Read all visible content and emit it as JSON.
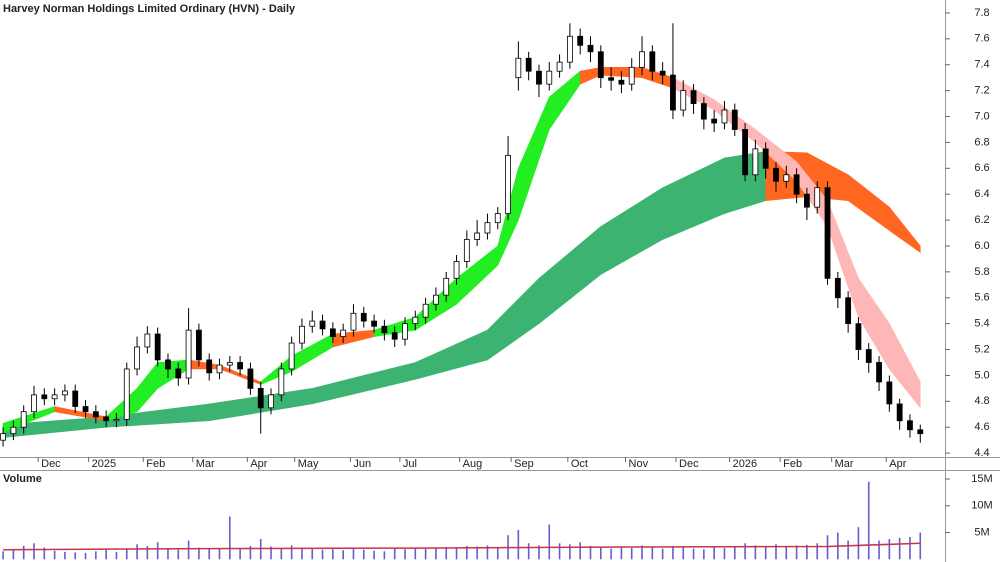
{
  "chart_data": [
    {
      "type": "candlestick",
      "title": "Harvey Norman Holdings Limited Ordinary (HVN) - Daily",
      "xlim": [
        -0.3,
        91.4
      ],
      "xticks": [
        {
          "value": 3.4,
          "label": "Dec"
        },
        {
          "value": 8.3,
          "label": "2025"
        },
        {
          "value": 13.6,
          "label": "Feb"
        },
        {
          "value": 18.4,
          "label": "Mar"
        },
        {
          "value": 23.7,
          "label": "Apr"
        },
        {
          "value": 28.3,
          "label": "May"
        },
        {
          "value": 33.7,
          "label": "Jun"
        },
        {
          "value": 38.5,
          "label": "Jul"
        },
        {
          "value": 44.3,
          "label": "Aug"
        },
        {
          "value": 49.3,
          "label": "Sep"
        },
        {
          "value": 54.8,
          "label": "Oct"
        },
        {
          "value": 60.4,
          "label": "Nov"
        },
        {
          "value": 65.3,
          "label": "Dec"
        },
        {
          "value": 70.5,
          "label": "2026"
        },
        {
          "value": 75.4,
          "label": "Feb"
        },
        {
          "value": 80.4,
          "label": "Mar"
        },
        {
          "value": 85.7,
          "label": "Apr"
        }
      ],
      "ylim": [
        4.37,
        7.9
      ],
      "yticks": [
        4.4,
        4.6,
        4.8,
        {
          "value": 5,
          "label": "5.0"
        },
        5.2,
        5.4,
        5.6,
        5.8,
        {
          "value": 6,
          "label": "6.0"
        },
        6.2,
        6.4,
        6.6,
        6.8,
        {
          "value": 7,
          "label": "7.0"
        },
        7.2,
        7.4,
        7.6,
        7.8
      ],
      "up_color": "#ffffff",
      "down_color": "#000000",
      "open": [
        4.5,
        4.55,
        4.6,
        4.72,
        4.85,
        4.82,
        4.85,
        4.88,
        4.76,
        4.72,
        4.68,
        4.65,
        4.66,
        5.05,
        5.22,
        5.32,
        5.12,
        5.05,
        4.98,
        5.35,
        5.12,
        5.02,
        5.08,
        5.1,
        5.05,
        4.9,
        4.75,
        4.85,
        5.05,
        5.25,
        5.38,
        5.42,
        5.36,
        5.3,
        5.35,
        5.48,
        5.42,
        5.38,
        5.33,
        5.28,
        5.4,
        5.45,
        5.55,
        5.62,
        5.75,
        5.88,
        6.05,
        6.1,
        6.18,
        6.25,
        7.3,
        7.45,
        7.35,
        7.25,
        7.35,
        7.42,
        7.62,
        7.55,
        7.5,
        7.3,
        7.28,
        7.25,
        7.38,
        7.5,
        7.35,
        7.32,
        7.05,
        7.2,
        7.1,
        6.98,
        6.95,
        7.05,
        6.9,
        6.55,
        6.75,
        6.6,
        6.5,
        6.55,
        6.4,
        6.3,
        6.45,
        5.75,
        5.6,
        5.4,
        5.2,
        5.1,
        4.95,
        4.78,
        4.65,
        4.58
      ],
      "high": [
        4.6,
        4.65,
        4.77,
        4.92,
        4.9,
        4.9,
        4.93,
        4.93,
        4.81,
        4.77,
        4.73,
        4.71,
        5.1,
        5.3,
        5.38,
        5.37,
        5.17,
        5.1,
        5.52,
        5.4,
        5.17,
        5.13,
        5.15,
        5.15,
        5.1,
        4.95,
        4.9,
        5.1,
        5.3,
        5.44,
        5.5,
        5.47,
        5.41,
        5.4,
        5.55,
        5.53,
        5.47,
        5.43,
        5.38,
        5.45,
        5.5,
        5.6,
        5.68,
        5.8,
        5.93,
        6.12,
        6.2,
        6.25,
        6.3,
        6.85,
        7.58,
        7.5,
        7.4,
        7.42,
        7.48,
        7.72,
        7.68,
        7.62,
        7.55,
        7.38,
        7.35,
        7.45,
        7.62,
        7.55,
        7.42,
        7.72,
        7.28,
        7.25,
        7.15,
        7.05,
        7.12,
        7.1,
        6.95,
        6.82,
        6.8,
        6.65,
        6.62,
        6.6,
        6.45,
        6.5,
        6.5,
        5.8,
        5.65,
        5.45,
        5.25,
        5.15,
        5.0,
        4.82,
        4.7,
        4.62
      ],
      "low": [
        4.45,
        4.5,
        4.55,
        4.67,
        4.77,
        4.77,
        4.8,
        4.71,
        4.67,
        4.63,
        4.6,
        4.6,
        4.61,
        5.0,
        5.17,
        5.07,
        4.98,
        4.92,
        4.93,
        5.07,
        4.96,
        4.97,
        5.03,
        5.0,
        4.85,
        4.55,
        4.7,
        4.8,
        5.0,
        5.2,
        5.33,
        5.31,
        5.25,
        5.25,
        5.3,
        5.37,
        5.33,
        5.27,
        5.22,
        5.23,
        5.35,
        5.4,
        5.5,
        5.57,
        5.7,
        5.83,
        6.0,
        6.05,
        6.13,
        6.2,
        7.2,
        7.28,
        7.15,
        7.2,
        7.3,
        7.37,
        7.48,
        7.42,
        7.22,
        7.2,
        7.18,
        7.2,
        7.32,
        7.28,
        7.25,
        6.98,
        7.0,
        7.02,
        6.9,
        6.88,
        6.9,
        6.85,
        6.5,
        6.5,
        6.52,
        6.42,
        6.45,
        6.33,
        6.2,
        6.25,
        5.7,
        5.52,
        5.33,
        5.12,
        5.02,
        4.88,
        4.72,
        4.58,
        4.52,
        4.48
      ],
      "close": [
        4.55,
        4.6,
        4.72,
        4.85,
        4.82,
        4.85,
        4.88,
        4.76,
        4.72,
        4.68,
        4.65,
        4.66,
        5.05,
        5.22,
        5.32,
        5.12,
        5.05,
        4.98,
        5.35,
        5.12,
        5.02,
        5.08,
        5.1,
        5.05,
        4.9,
        4.75,
        4.85,
        5.05,
        5.25,
        5.38,
        5.42,
        5.36,
        5.3,
        5.35,
        5.48,
        5.42,
        5.38,
        5.33,
        5.28,
        5.4,
        5.45,
        5.55,
        5.62,
        5.75,
        5.88,
        6.05,
        6.1,
        6.18,
        6.25,
        6.7,
        7.45,
        7.35,
        7.25,
        7.35,
        7.42,
        7.62,
        7.55,
        7.5,
        7.3,
        7.28,
        7.25,
        7.38,
        7.5,
        7.35,
        7.32,
        7.05,
        7.2,
        7.1,
        6.98,
        6.95,
        7.05,
        6.9,
        6.55,
        6.75,
        6.6,
        6.5,
        6.55,
        6.4,
        6.3,
        6.45,
        5.75,
        5.6,
        5.4,
        5.2,
        5.1,
        4.95,
        4.78,
        4.65,
        4.58,
        4.55
      ],
      "bands": [
        {
          "x": [
            0,
            10,
            20,
            30,
            40,
            47,
            52,
            58,
            64,
            70,
            74,
            78,
            82,
            86,
            89
          ],
          "upper": [
            4.62,
            4.68,
            4.78,
            4.9,
            5.1,
            5.35,
            5.75,
            6.15,
            6.45,
            6.68,
            6.73,
            6.72,
            6.55,
            6.3,
            6.0
          ],
          "lower": [
            4.52,
            4.6,
            4.65,
            4.78,
            4.97,
            5.12,
            5.4,
            5.78,
            6.05,
            6.25,
            6.35,
            6.38,
            6.35,
            6.12,
            5.95
          ],
          "colors": [
            "#3cb371",
            "#3cb371",
            "#3cb371",
            "#3cb371",
            "#3cb371",
            "#3cb371",
            "#3cb371",
            "#3cb371",
            "#3cb371",
            "#3cb371",
            "#ff6620",
            "#ff6620",
            "#ff6620",
            "#ff6620"
          ]
        },
        {
          "x": [
            0,
            5,
            10,
            13,
            15,
            18,
            21,
            25,
            28,
            32,
            36,
            40,
            44,
            48,
            50,
            53,
            56,
            58,
            62,
            65,
            69,
            73,
            77,
            80,
            83,
            86,
            89
          ],
          "upper": [
            4.63,
            4.76,
            4.68,
            4.9,
            5.1,
            5.12,
            5.08,
            4.95,
            5.15,
            5.32,
            5.35,
            5.45,
            5.75,
            6.0,
            6.6,
            7.15,
            7.35,
            7.38,
            7.38,
            7.3,
            7.13,
            6.9,
            6.65,
            6.35,
            5.75,
            5.4,
            4.95
          ],
          "lower": [
            4.56,
            4.72,
            4.65,
            4.72,
            4.9,
            5.05,
            5.05,
            4.93,
            5.03,
            5.22,
            5.3,
            5.35,
            5.55,
            5.85,
            6.2,
            6.9,
            7.25,
            7.32,
            7.3,
            7.22,
            7.05,
            6.8,
            6.5,
            6.15,
            5.45,
            5.05,
            4.75
          ],
          "colors": [
            "#22ee22",
            "#ff6620",
            "#22ee22",
            "#22ee22",
            "#22ee22",
            "#ff6620",
            "#ff6620",
            "#22ee22",
            "#22ee22",
            "#ff6620",
            "#22ee22",
            "#22ee22",
            "#22ee22",
            "#22ee22",
            "#22ee22",
            "#22ee22",
            "#ff6620",
            "#ff6620",
            "#ff6620",
            "#ffb6b6",
            "#ffb6b6",
            "#ffb6b6",
            "#ffb6b6",
            "#ffb6b6",
            "#ffb6b6",
            "#ffb6b6"
          ]
        }
      ]
    },
    {
      "type": "bar",
      "title": "Volume",
      "color": "#6a5acd",
      "xlim": [
        -0.3,
        91.4
      ],
      "ylim": [
        -500000,
        16500000
      ],
      "yticks": [
        {
          "value": 5000000,
          "label": "5M"
        },
        {
          "value": 10000000,
          "label": "10M"
        },
        {
          "value": 15000000,
          "label": "15M"
        }
      ],
      "values": [
        1500000,
        1800000,
        2500000,
        3000000,
        2200000,
        1600000,
        1400000,
        1300000,
        1200000,
        1500000,
        1800000,
        1400000,
        2000000,
        2800000,
        2500000,
        3200000,
        2000000,
        1800000,
        3500000,
        2200000,
        1900000,
        2100000,
        8000000,
        2000000,
        2500000,
        3800000,
        2400000,
        2100000,
        2600000,
        2200000,
        2000000,
        1800000,
        1900000,
        1700000,
        2100000,
        1800000,
        1600000,
        1500000,
        2000000,
        1900000,
        2100000,
        2000000,
        2200000,
        2300000,
        2100000,
        2500000,
        2400000,
        2600000,
        2300000,
        4500000,
        5500000,
        3000000,
        2600000,
        6500000,
        3000000,
        2800000,
        3200000,
        2500000,
        2200000,
        2000000,
        2400000,
        2100000,
        2600000,
        2300000,
        2000000,
        2500000,
        2300000,
        2000000,
        1900000,
        2200000,
        2100000,
        2400000,
        3000000,
        2600000,
        2500000,
        2800000,
        2400000,
        2600000,
        2700000,
        3000000,
        4500000,
        5000000,
        3500000,
        6000000,
        14500000,
        3500000,
        3800000,
        4000000,
        4200000,
        5000000
      ],
      "average": {
        "color": "#c8324a",
        "x": [
          0,
          20,
          40,
          60,
          80,
          89
        ],
        "values": [
          1800000,
          2000000,
          2100000,
          2300000,
          2400000,
          3000000
        ]
      }
    }
  ]
}
